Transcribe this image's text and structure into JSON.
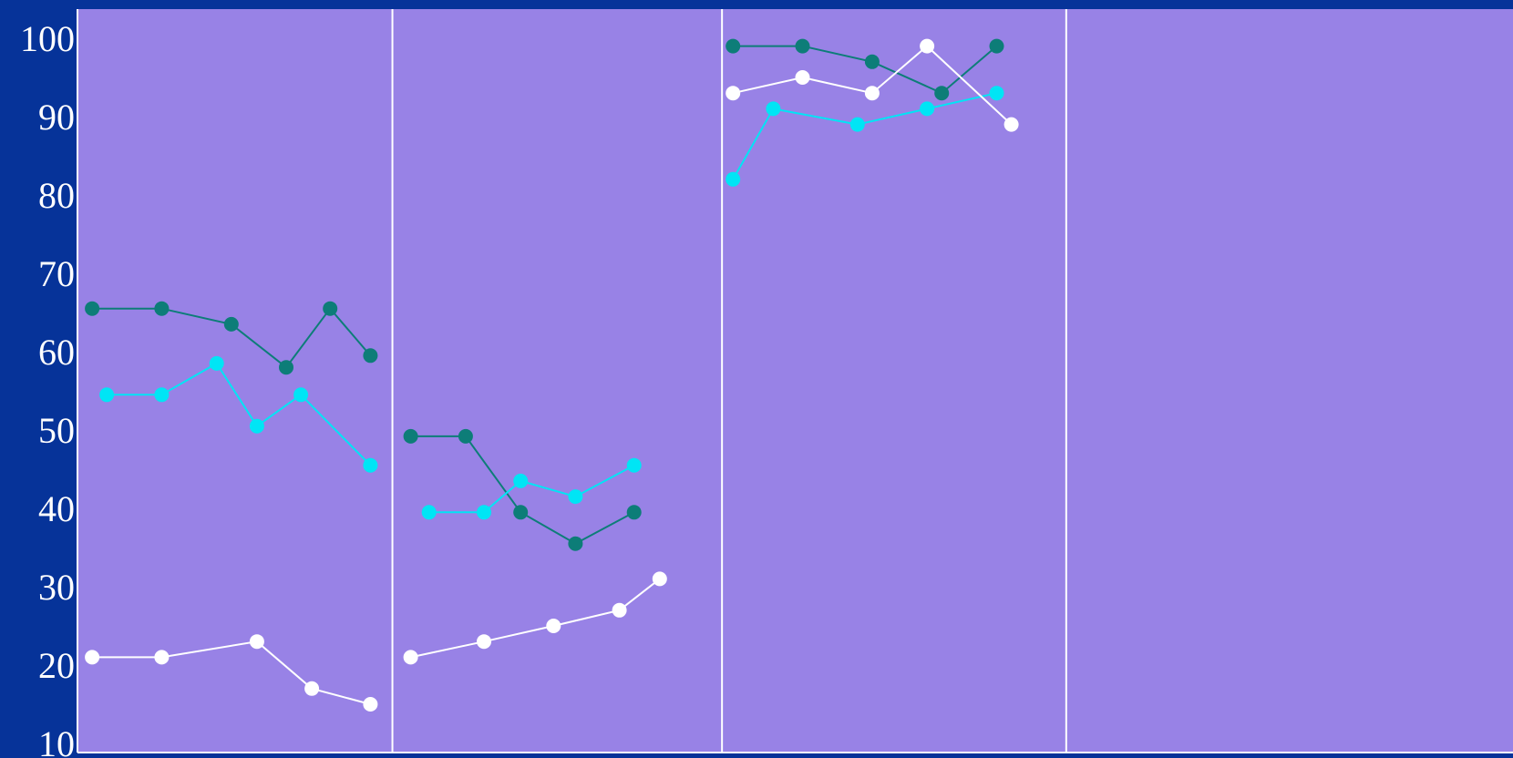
{
  "chart_data": {
    "type": "line",
    "title": "",
    "xlabel": "",
    "ylabel": "",
    "ylim": [
      10,
      100
    ],
    "yticks": [
      100,
      90,
      80,
      70,
      60,
      50,
      40,
      30,
      20,
      10
    ],
    "x_domain": [
      0,
      19.6
    ],
    "panel_dividers": [
      4.3,
      8.8,
      13.5
    ],
    "grid": false,
    "legend": "none",
    "colors": {
      "page_background": "#063399",
      "plot_background": "#9882e6",
      "divider": "#ffffff"
    },
    "series": [
      {
        "color": "#0d7d78",
        "segments": [
          [
            [
              0.2,
              65.5
            ],
            [
              1.15,
              65.5
            ],
            [
              2.1,
              63.5
            ],
            [
              2.85,
              58
            ],
            [
              3.45,
              65.5
            ],
            [
              4.0,
              59.5
            ]
          ],
          [
            [
              4.55,
              49.2
            ],
            [
              5.3,
              49.2
            ],
            [
              6.05,
              39.5
            ],
            [
              6.8,
              35.5
            ],
            [
              7.6,
              39.5
            ]
          ],
          [
            [
              8.95,
              99
            ],
            [
              9.9,
              99
            ],
            [
              10.85,
              97
            ],
            [
              11.8,
              93
            ],
            [
              12.55,
              99
            ]
          ]
        ]
      },
      {
        "color": "#00e5f5",
        "segments": [
          [
            [
              0.4,
              54.5
            ],
            [
              1.15,
              54.5
            ],
            [
              1.9,
              58.5
            ],
            [
              2.45,
              50.5
            ],
            [
              3.05,
              54.5
            ],
            [
              4.0,
              45.5
            ]
          ],
          [
            [
              4.8,
              39.5
            ],
            [
              5.55,
              39.5
            ],
            [
              6.05,
              43.5
            ],
            [
              6.8,
              41.5
            ],
            [
              7.6,
              45.5
            ]
          ],
          [
            [
              8.95,
              82
            ],
            [
              9.5,
              91
            ],
            [
              10.65,
              89
            ],
            [
              11.6,
              91
            ],
            [
              12.55,
              93
            ]
          ]
        ]
      },
      {
        "color": "#ffffff",
        "segments": [
          [
            [
              0.2,
              21
            ],
            [
              1.15,
              21
            ],
            [
              2.45,
              23
            ],
            [
              3.2,
              17
            ],
            [
              4.0,
              15
            ]
          ],
          [
            [
              4.55,
              21
            ],
            [
              5.55,
              23
            ],
            [
              6.5,
              25
            ],
            [
              7.4,
              27
            ],
            [
              7.95,
              31
            ]
          ],
          [
            [
              8.95,
              93
            ],
            [
              9.9,
              95
            ],
            [
              10.85,
              93
            ],
            [
              11.6,
              99
            ],
            [
              12.75,
              89
            ]
          ]
        ]
      }
    ]
  }
}
